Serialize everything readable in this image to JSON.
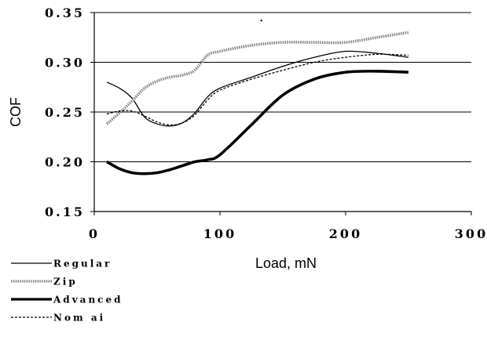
{
  "chart_data": {
    "type": "line",
    "title": "",
    "xlabel": "Load, mN",
    "ylabel": "COF",
    "xlim": [
      0,
      300
    ],
    "ylim": [
      0.15,
      0.35
    ],
    "xticks": [
      "0",
      "100",
      "200",
      "300"
    ],
    "yticks": [
      "0.35",
      "0.30",
      "0.25",
      "0.20",
      "0.15"
    ],
    "grid": "horizontal",
    "legend_position": "bottom-left",
    "series": [
      {
        "name": "Regular",
        "style": "thin-solid",
        "color": "#000000",
        "x": [
          10,
          20,
          30,
          40,
          50,
          60,
          70,
          80,
          90,
          100,
          125,
          150,
          175,
          200,
          225,
          250
        ],
        "y": [
          0.28,
          0.274,
          0.264,
          0.245,
          0.238,
          0.236,
          0.239,
          0.249,
          0.265,
          0.274,
          0.285,
          0.296,
          0.305,
          0.311,
          0.309,
          0.305
        ]
      },
      {
        "name": "Zip",
        "style": "thick-dotted",
        "color": "#888888",
        "x": [
          10,
          20,
          30,
          40,
          50,
          60,
          70,
          80,
          90,
          100,
          125,
          150,
          175,
          200,
          225,
          250
        ],
        "y": [
          0.238,
          0.249,
          0.261,
          0.274,
          0.281,
          0.285,
          0.287,
          0.292,
          0.307,
          0.311,
          0.317,
          0.32,
          0.32,
          0.32,
          0.325,
          0.33
        ]
      },
      {
        "name": "Advanced",
        "style": "thick-solid",
        "color": "#000000",
        "x": [
          10,
          20,
          30,
          40,
          50,
          60,
          70,
          80,
          90,
          100,
          125,
          150,
          175,
          200,
          225,
          250
        ],
        "y": [
          0.2,
          0.193,
          0.189,
          0.188,
          0.189,
          0.192,
          0.196,
          0.2,
          0.202,
          0.207,
          0.237,
          0.267,
          0.283,
          0.29,
          0.291,
          0.29
        ]
      },
      {
        "name": "Nom ai",
        "style": "dashed",
        "color": "#000000",
        "x": [
          10,
          20,
          30,
          40,
          50,
          60,
          70,
          80,
          90,
          100,
          125,
          150,
          175,
          200,
          225,
          250
        ],
        "y": [
          0.248,
          0.251,
          0.251,
          0.246,
          0.24,
          0.237,
          0.239,
          0.247,
          0.262,
          0.272,
          0.283,
          0.292,
          0.3,
          0.305,
          0.308,
          0.307
        ]
      }
    ],
    "annotations": [
      {
        "text": "·",
        "x": 133,
        "y": 0.342
      }
    ]
  }
}
